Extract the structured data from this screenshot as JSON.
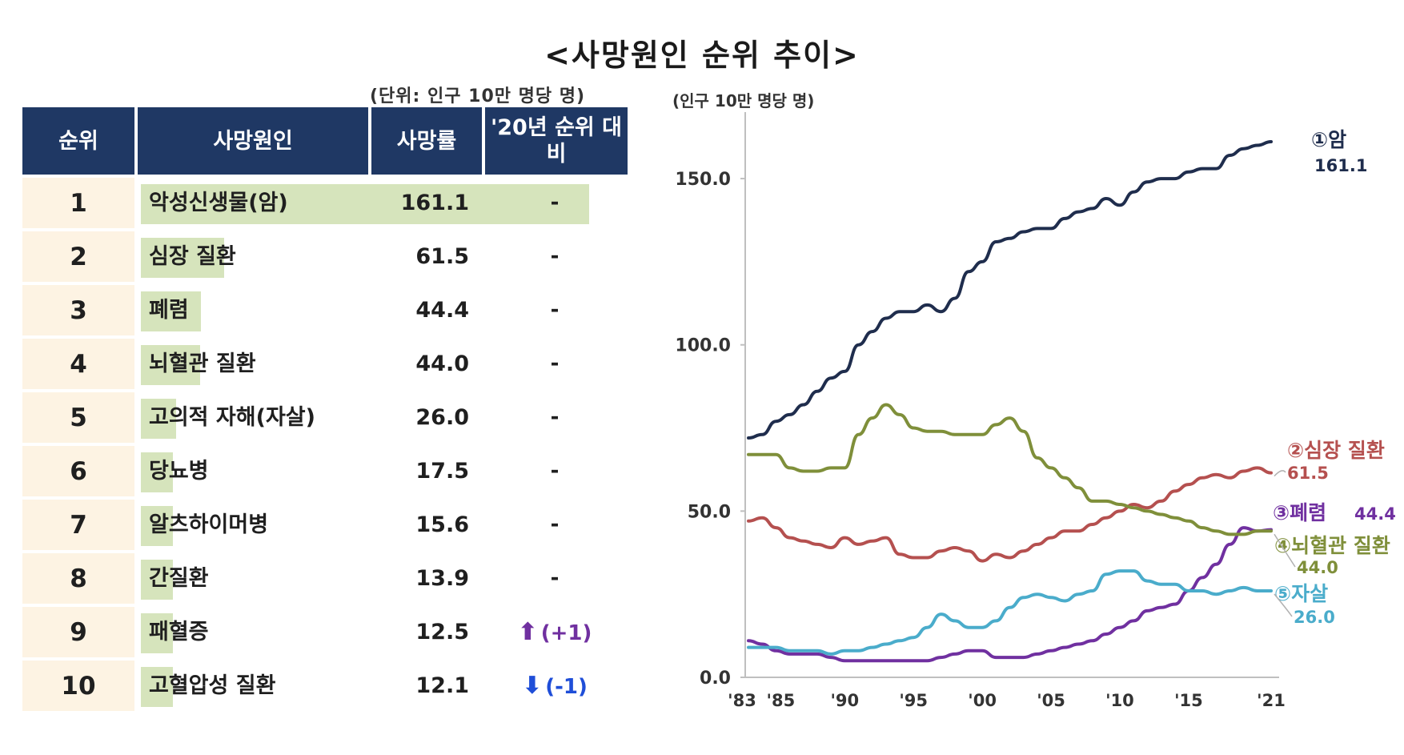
{
  "title": "<사망원인 순위 추이>",
  "table_unit": "(단위: 인구 10만 명당 명)",
  "table": {
    "headers": [
      "순위",
      "사망원인",
      "사망률",
      "'20년 순위 대비"
    ],
    "rows": [
      {
        "rank": "1",
        "cause": "악성신생물(암)",
        "rate": "161.1",
        "change": "-",
        "dir": "none"
      },
      {
        "rank": "2",
        "cause": "심장 질환",
        "rate": "61.5",
        "change": "-",
        "dir": "none"
      },
      {
        "rank": "3",
        "cause": "폐렴",
        "rate": "44.4",
        "change": "-",
        "dir": "none"
      },
      {
        "rank": "4",
        "cause": "뇌혈관 질환",
        "rate": "44.0",
        "change": "-",
        "dir": "none"
      },
      {
        "rank": "5",
        "cause": "고의적 자해(자살)",
        "rate": "26.0",
        "change": "-",
        "dir": "none"
      },
      {
        "rank": "6",
        "cause": "당뇨병",
        "rate": "17.5",
        "change": "-",
        "dir": "none"
      },
      {
        "rank": "7",
        "cause": "알츠하이머병",
        "rate": "15.6",
        "change": "-",
        "dir": "none"
      },
      {
        "rank": "8",
        "cause": "간질환",
        "rate": "13.9",
        "change": "-",
        "dir": "none"
      },
      {
        "rank": "9",
        "cause": "패혈증",
        "rate": "12.5",
        "change": "(+1)",
        "dir": "up"
      },
      {
        "rank": "10",
        "cause": "고혈압성 질환",
        "rate": "12.1",
        "change": "(-1)",
        "dir": "down"
      }
    ]
  },
  "colors": {
    "header_bg": "#1f3864",
    "rank_bg": "#fdf3e3",
    "bar": "#d6e4bc",
    "up": "#7030a0",
    "down": "#1f4ed8"
  },
  "chart_data": {
    "type": "line",
    "unit_label": "(인구 10만 명당 명)",
    "ylim": [
      0,
      170
    ],
    "yticks": [
      0,
      50,
      100,
      150
    ],
    "ytick_labels": [
      "0.0",
      "50.0",
      "100.0",
      "150.0"
    ],
    "x": [
      1983,
      1984,
      1985,
      1986,
      1987,
      1988,
      1989,
      1990,
      1991,
      1992,
      1993,
      1994,
      1995,
      1996,
      1997,
      1998,
      1999,
      2000,
      2001,
      2002,
      2003,
      2004,
      2005,
      2006,
      2007,
      2008,
      2009,
      2010,
      2011,
      2012,
      2013,
      2014,
      2015,
      2016,
      2017,
      2018,
      2019,
      2020,
      2021
    ],
    "xticks": [
      1983,
      1985,
      1990,
      1995,
      2000,
      2005,
      2010,
      2015,
      2021
    ],
    "xtick_labels": [
      "'83",
      "'85",
      "'90",
      "'95",
      "'00",
      "'05",
      "'10",
      "'15",
      "'21"
    ],
    "series": [
      {
        "name": "①암",
        "value_label": "161.1",
        "color": "#1f2d4d",
        "values": [
          72,
          73,
          77,
          79,
          82,
          86,
          90,
          92,
          100,
          104,
          108,
          110,
          110,
          112,
          110,
          114,
          122,
          125,
          131,
          132,
          134,
          135,
          135,
          138,
          140,
          141,
          144,
          142,
          146,
          149,
          150,
          150,
          152,
          153,
          153,
          157,
          159,
          160,
          161.1
        ]
      },
      {
        "name": "②심장 질환",
        "value_label": "61.5",
        "color": "#b5504f",
        "values": [
          47,
          48,
          45,
          42,
          41,
          40,
          39,
          42,
          40,
          41,
          42,
          37,
          36,
          36,
          38,
          39,
          38,
          35,
          37,
          36,
          38,
          40,
          42,
          44,
          44,
          46,
          48,
          50,
          52,
          51,
          53,
          56,
          58,
          60,
          61,
          60,
          62,
          63,
          61.5
        ]
      },
      {
        "name": "③폐렴",
        "value_label": "44.4",
        "color": "#7030a0",
        "values": [
          11,
          10,
          8,
          7,
          7,
          7,
          6,
          5,
          5,
          5,
          5,
          5,
          5,
          5,
          6,
          7,
          8,
          8,
          6,
          6,
          6,
          7,
          8,
          9,
          10,
          11,
          13,
          15,
          17,
          20,
          21,
          22,
          26,
          30,
          34,
          40,
          45,
          44,
          44.4
        ]
      },
      {
        "name": "④뇌혈관 질환",
        "value_label": "44.0",
        "color": "#7f8f3a",
        "values": [
          67,
          67,
          67,
          63,
          62,
          62,
          63,
          63,
          73,
          78,
          82,
          79,
          75,
          74,
          74,
          73,
          73,
          73,
          76,
          78,
          74,
          66,
          63,
          60,
          57,
          53,
          53,
          52,
          51,
          50,
          49,
          48,
          47,
          45,
          44,
          43,
          43,
          44,
          44.0
        ]
      },
      {
        "name": "⑤자살",
        "value_label": "26.0",
        "color": "#4aaccb",
        "values": [
          9,
          9,
          9,
          8,
          8,
          8,
          7,
          8,
          8,
          9,
          10,
          11,
          12,
          15,
          19,
          17,
          15,
          15,
          17,
          21,
          24,
          25,
          24,
          23,
          25,
          26,
          31,
          32,
          32,
          29,
          28,
          28,
          26,
          26,
          25,
          26,
          27,
          26,
          26.0
        ]
      }
    ]
  }
}
